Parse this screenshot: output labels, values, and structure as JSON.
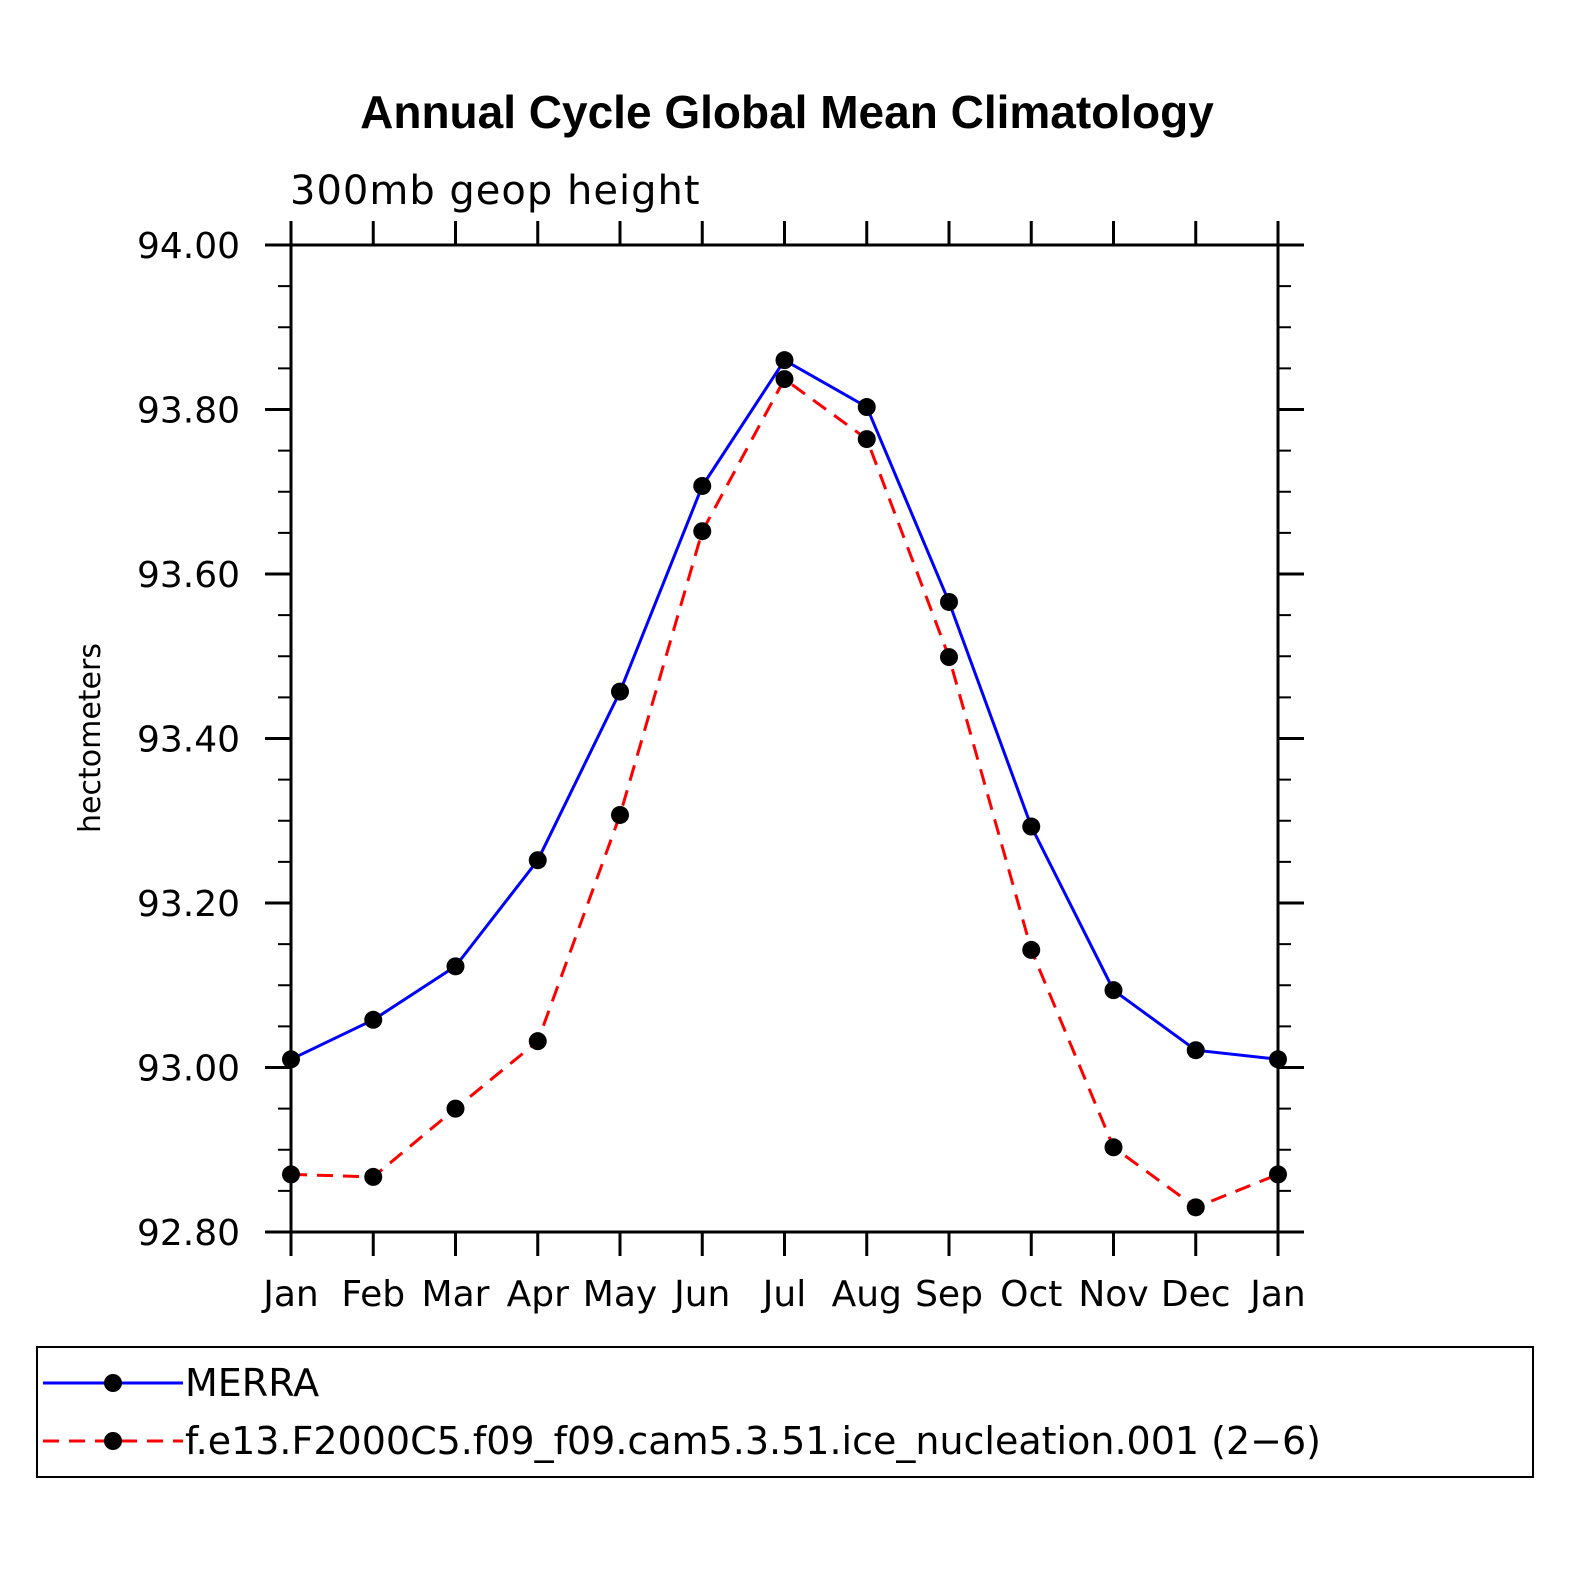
{
  "chart_data": {
    "type": "line",
    "title": "Annual Cycle Global Mean Climatology",
    "subtitle": "300mb geop height",
    "xlabel": "",
    "ylabel": "hectometers",
    "categories": [
      "Jan",
      "Feb",
      "Mar",
      "Apr",
      "May",
      "Jun",
      "Jul",
      "Aug",
      "Sep",
      "Oct",
      "Nov",
      "Dec",
      "Jan"
    ],
    "ylim": [
      92.8,
      94.0
    ],
    "yticks": [
      "92.80",
      "93.00",
      "93.20",
      "93.40",
      "93.60",
      "93.80",
      "94.00"
    ],
    "series": [
      {
        "name": "MERRA",
        "color": "#0000ff",
        "dash": "solid",
        "values": [
          93.01,
          93.058,
          93.123,
          93.252,
          93.457,
          93.707,
          93.86,
          93.803,
          93.566,
          93.293,
          93.094,
          93.021,
          93.01
        ]
      },
      {
        "name": "f.e13.F2000C5.f09_f09.cam5.3.51.ice_nucleation.001 (2−6)",
        "color": "#ff0000",
        "dash": "dashed",
        "values": [
          92.87,
          92.867,
          92.95,
          93.032,
          93.307,
          93.652,
          93.837,
          93.764,
          93.499,
          93.143,
          92.903,
          92.83,
          92.87
        ]
      }
    ],
    "legend_position": "bottom"
  }
}
